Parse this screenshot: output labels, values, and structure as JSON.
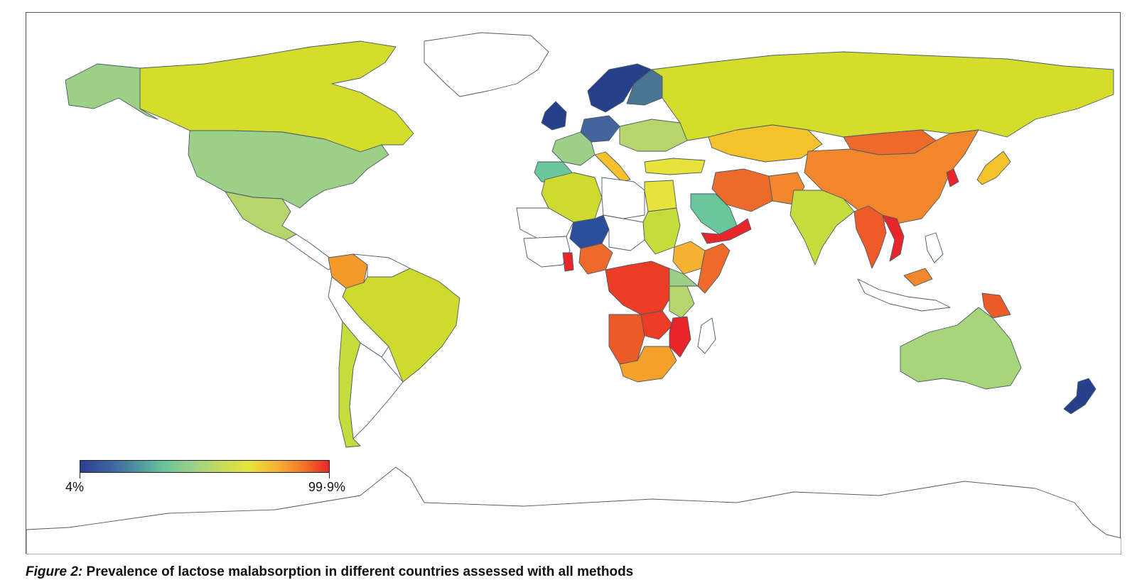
{
  "legend": {
    "min_label": "4%",
    "max_label": "99·9%",
    "min_value": 4,
    "max_value": 99.9,
    "colors": [
      "#2b3f8f",
      "#4d8fa0",
      "#66c29a",
      "#9bd08a",
      "#c6dc5a",
      "#e8e33a",
      "#f6b233",
      "#f37b2a",
      "#e8262a"
    ]
  },
  "caption": {
    "label": "Figure 2:",
    "text": "Prevalence of lactose malabsorption in different countries assessed with all methods"
  },
  "regions": [
    {
      "name": "Canada",
      "color": "#d4dd2c"
    },
    {
      "name": "Alaska",
      "color": "#9ccf88"
    },
    {
      "name": "USA",
      "color": "#9ccf88"
    },
    {
      "name": "Mexico",
      "color": "#b6d56c"
    },
    {
      "name": "Colombia",
      "color": "#f59a2a"
    },
    {
      "name": "Brazil",
      "color": "#cfda2e"
    },
    {
      "name": "Chile",
      "color": "#c6dc3c"
    },
    {
      "name": "Greenland",
      "color": "#ffffff"
    },
    {
      "name": "Scandinavia",
      "color": "#26418a"
    },
    {
      "name": "Finland",
      "color": "#4a7592"
    },
    {
      "name": "UK",
      "color": "#26418a"
    },
    {
      "name": "France",
      "color": "#9ccf88"
    },
    {
      "name": "Spain",
      "color": "#6cc69c"
    },
    {
      "name": "Germany",
      "color": "#44649e"
    },
    {
      "name": "Italy",
      "color": "#f6c22c"
    },
    {
      "name": "Russia",
      "color": "#d4dd2c"
    },
    {
      "name": "Kazakhstan",
      "color": "#f6c22c"
    },
    {
      "name": "China",
      "color": "#f2862a"
    },
    {
      "name": "Mongolia",
      "color": "#ee6a2a"
    },
    {
      "name": "Korea",
      "color": "#e8262a"
    },
    {
      "name": "Japan",
      "color": "#f6c22c"
    },
    {
      "name": "India",
      "color": "#c6dc3c"
    },
    {
      "name": "Iran",
      "color": "#ec6a2a"
    },
    {
      "name": "Saudi Arabia",
      "color": "#6cc69c"
    },
    {
      "name": "Yemen",
      "color": "#e8262a"
    },
    {
      "name": "Turkey",
      "color": "#e8e33a"
    },
    {
      "name": "Egypt",
      "color": "#e8e33a"
    },
    {
      "name": "Algeria",
      "color": "#cfda2e"
    },
    {
      "name": "Niger",
      "color": "#2b4f9a"
    },
    {
      "name": "Sudan",
      "color": "#c6dc3c"
    },
    {
      "name": "Ethiopia",
      "color": "#f6b233"
    },
    {
      "name": "Somalia",
      "color": "#ee6a2a"
    },
    {
      "name": "Nigeria",
      "color": "#ee6a2a"
    },
    {
      "name": "Ghana",
      "color": "#e8262a"
    },
    {
      "name": "Congo",
      "color": "#ec3c26"
    },
    {
      "name": "Tanzania",
      "color": "#b6d56c"
    },
    {
      "name": "Angola",
      "color": "#ec5a28"
    },
    {
      "name": "Mozambique",
      "color": "#e8262a"
    },
    {
      "name": "South Africa",
      "color": "#f6a02c"
    },
    {
      "name": "Southeast Asia",
      "color": "#ee5a28"
    },
    {
      "name": "Vietnam",
      "color": "#e8262a"
    },
    {
      "name": "Malaysia",
      "color": "#f2862a"
    },
    {
      "name": "Papua New Guinea",
      "color": "#ec5a28"
    },
    {
      "name": "Australia",
      "color": "#a8d47a"
    },
    {
      "name": "New Zealand",
      "color": "#26418a"
    },
    {
      "name": "Antarctica",
      "color": "#ffffff"
    }
  ]
}
